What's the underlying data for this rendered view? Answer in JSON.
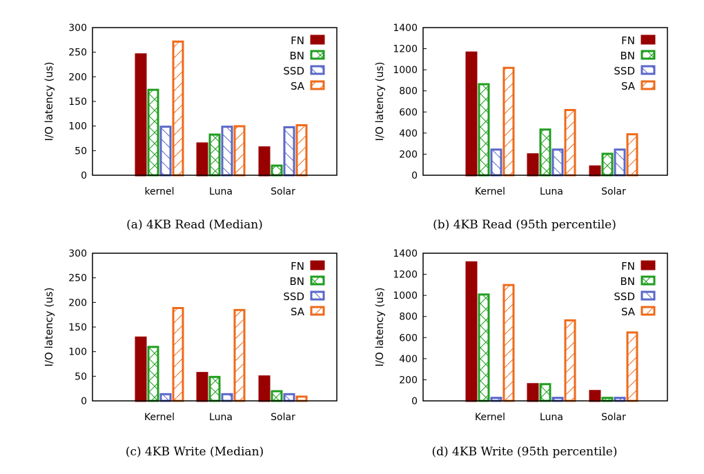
{
  "series_styles": {
    "FN": {
      "color": "#990000",
      "pattern": "solid"
    },
    "BN": {
      "color": "#1f9e1f",
      "pattern": "cross"
    },
    "SSD": {
      "color": "#5a67c8",
      "pattern": "backslash"
    },
    "SA": {
      "color": "#ee6a1a",
      "pattern": "slash"
    }
  },
  "chart_data": [
    {
      "type": "bar",
      "title": "(a) 4KB Read (Median)",
      "ylabel": "I/O latency (us)",
      "ylim": [
        0,
        300
      ],
      "yticks": [
        0,
        50,
        100,
        150,
        200,
        250,
        300
      ],
      "categories": [
        "kernel",
        "Luna",
        "Solar"
      ],
      "legend": "top-right",
      "series": [
        {
          "name": "FN",
          "values": [
            247,
            66,
            58
          ]
        },
        {
          "name": "BN",
          "values": [
            175,
            84,
            21
          ]
        },
        {
          "name": "SSD",
          "values": [
            100,
            100,
            99
          ]
        },
        {
          "name": "SA",
          "values": [
            273,
            101,
            103
          ]
        }
      ]
    },
    {
      "type": "bar",
      "title": "(b) 4KB Read (95th percentile)",
      "ylabel": "I/O latency (us)",
      "ylim": [
        0,
        1400
      ],
      "yticks": [
        0,
        200,
        400,
        600,
        800,
        1000,
        1200,
        1400
      ],
      "categories": [
        "Kernel",
        "Luna",
        "Solar"
      ],
      "legend": "top-right",
      "series": [
        {
          "name": "FN",
          "values": [
            1170,
            205,
            90
          ]
        },
        {
          "name": "BN",
          "values": [
            870,
            440,
            210
          ]
        },
        {
          "name": "SSD",
          "values": [
            250,
            250,
            250
          ]
        },
        {
          "name": "SA",
          "values": [
            1025,
            625,
            395
          ]
        }
      ]
    },
    {
      "type": "bar",
      "title": "(c) 4KB Write (Median)",
      "ylabel": "I/O latency (us)",
      "ylim": [
        0,
        300
      ],
      "yticks": [
        0,
        50,
        100,
        150,
        200,
        250,
        300
      ],
      "categories": [
        "Kernel",
        "Luna",
        "Solar"
      ],
      "legend": "top-right",
      "series": [
        {
          "name": "FN",
          "values": [
            130,
            58,
            51
          ]
        },
        {
          "name": "BN",
          "values": [
            111,
            50,
            21
          ]
        },
        {
          "name": "SSD",
          "values": [
            15,
            15,
            15
          ]
        },
        {
          "name": "SA",
          "values": [
            190,
            186,
            10
          ]
        }
      ]
    },
    {
      "type": "bar",
      "title": "(d) 4KB Write (95th percentile)",
      "ylabel": "I/O latency (us)",
      "ylim": [
        0,
        1400
      ],
      "yticks": [
        0,
        200,
        400,
        600,
        800,
        1000,
        1200,
        1400
      ],
      "categories": [
        "Kernel",
        "Luna",
        "Solar"
      ],
      "legend": "top-right",
      "series": [
        {
          "name": "FN",
          "values": [
            1320,
            165,
            100
          ]
        },
        {
          "name": "BN",
          "values": [
            1015,
            165,
            35
          ]
        },
        {
          "name": "SSD",
          "values": [
            35,
            35,
            35
          ]
        },
        {
          "name": "SA",
          "values": [
            1105,
            770,
            655
          ]
        }
      ]
    }
  ]
}
